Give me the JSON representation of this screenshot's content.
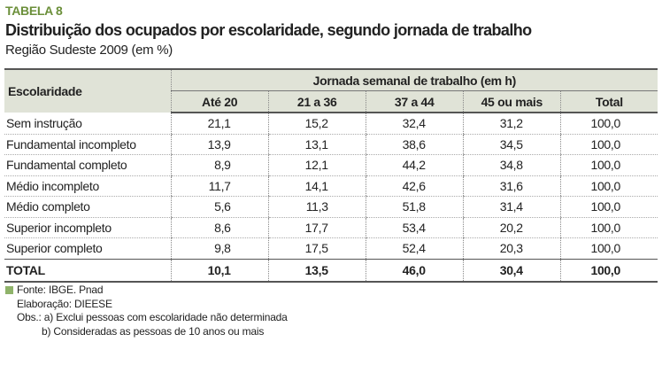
{
  "header": {
    "label": "TABELA 8",
    "title": "Distribuição dos ocupados por escolaridade, segundo jornada de trabalho",
    "subtitle": "Região Sudeste 2009 (em %)"
  },
  "table": {
    "row_header": "Escolaridade",
    "group_header": "Jornada semanal de trabalho (em h)",
    "columns": [
      "Até 20",
      "21 a 36",
      "37 a 44",
      "45 ou mais",
      "Total"
    ],
    "rows": [
      [
        "Sem instrução",
        "21,1",
        "15,2",
        "32,4",
        "31,2",
        "100,0"
      ],
      [
        "Fundamental incompleto",
        "13,9",
        "13,1",
        "38,6",
        "34,5",
        "100,0"
      ],
      [
        "Fundamental completo",
        "8,9",
        "12,1",
        "44,2",
        "34,8",
        "100,0"
      ],
      [
        "Médio incompleto",
        "11,7",
        "14,1",
        "42,6",
        "31,6",
        "100,0"
      ],
      [
        "Médio completo",
        "5,6",
        "11,3",
        "51,8",
        "31,4",
        "100,0"
      ],
      [
        "Superior incompleto",
        "8,6",
        "17,7",
        "53,4",
        "20,2",
        "100,0"
      ],
      [
        "Superior completo",
        "9,8",
        "17,5",
        "52,4",
        "20,3",
        "100,0"
      ]
    ],
    "total": [
      "TOTAL",
      "10,1",
      "13,5",
      "46,0",
      "30,4",
      "100,0"
    ]
  },
  "notes": {
    "source": "Fonte: IBGE. Pnad",
    "elaboration": "Elaboração: DIEESE",
    "obs_a": "Obs.: a) Exclui pessoas com escolaridade não determinada",
    "obs_b": "b) Consideradas as pessoas de 10 anos ou mais"
  }
}
